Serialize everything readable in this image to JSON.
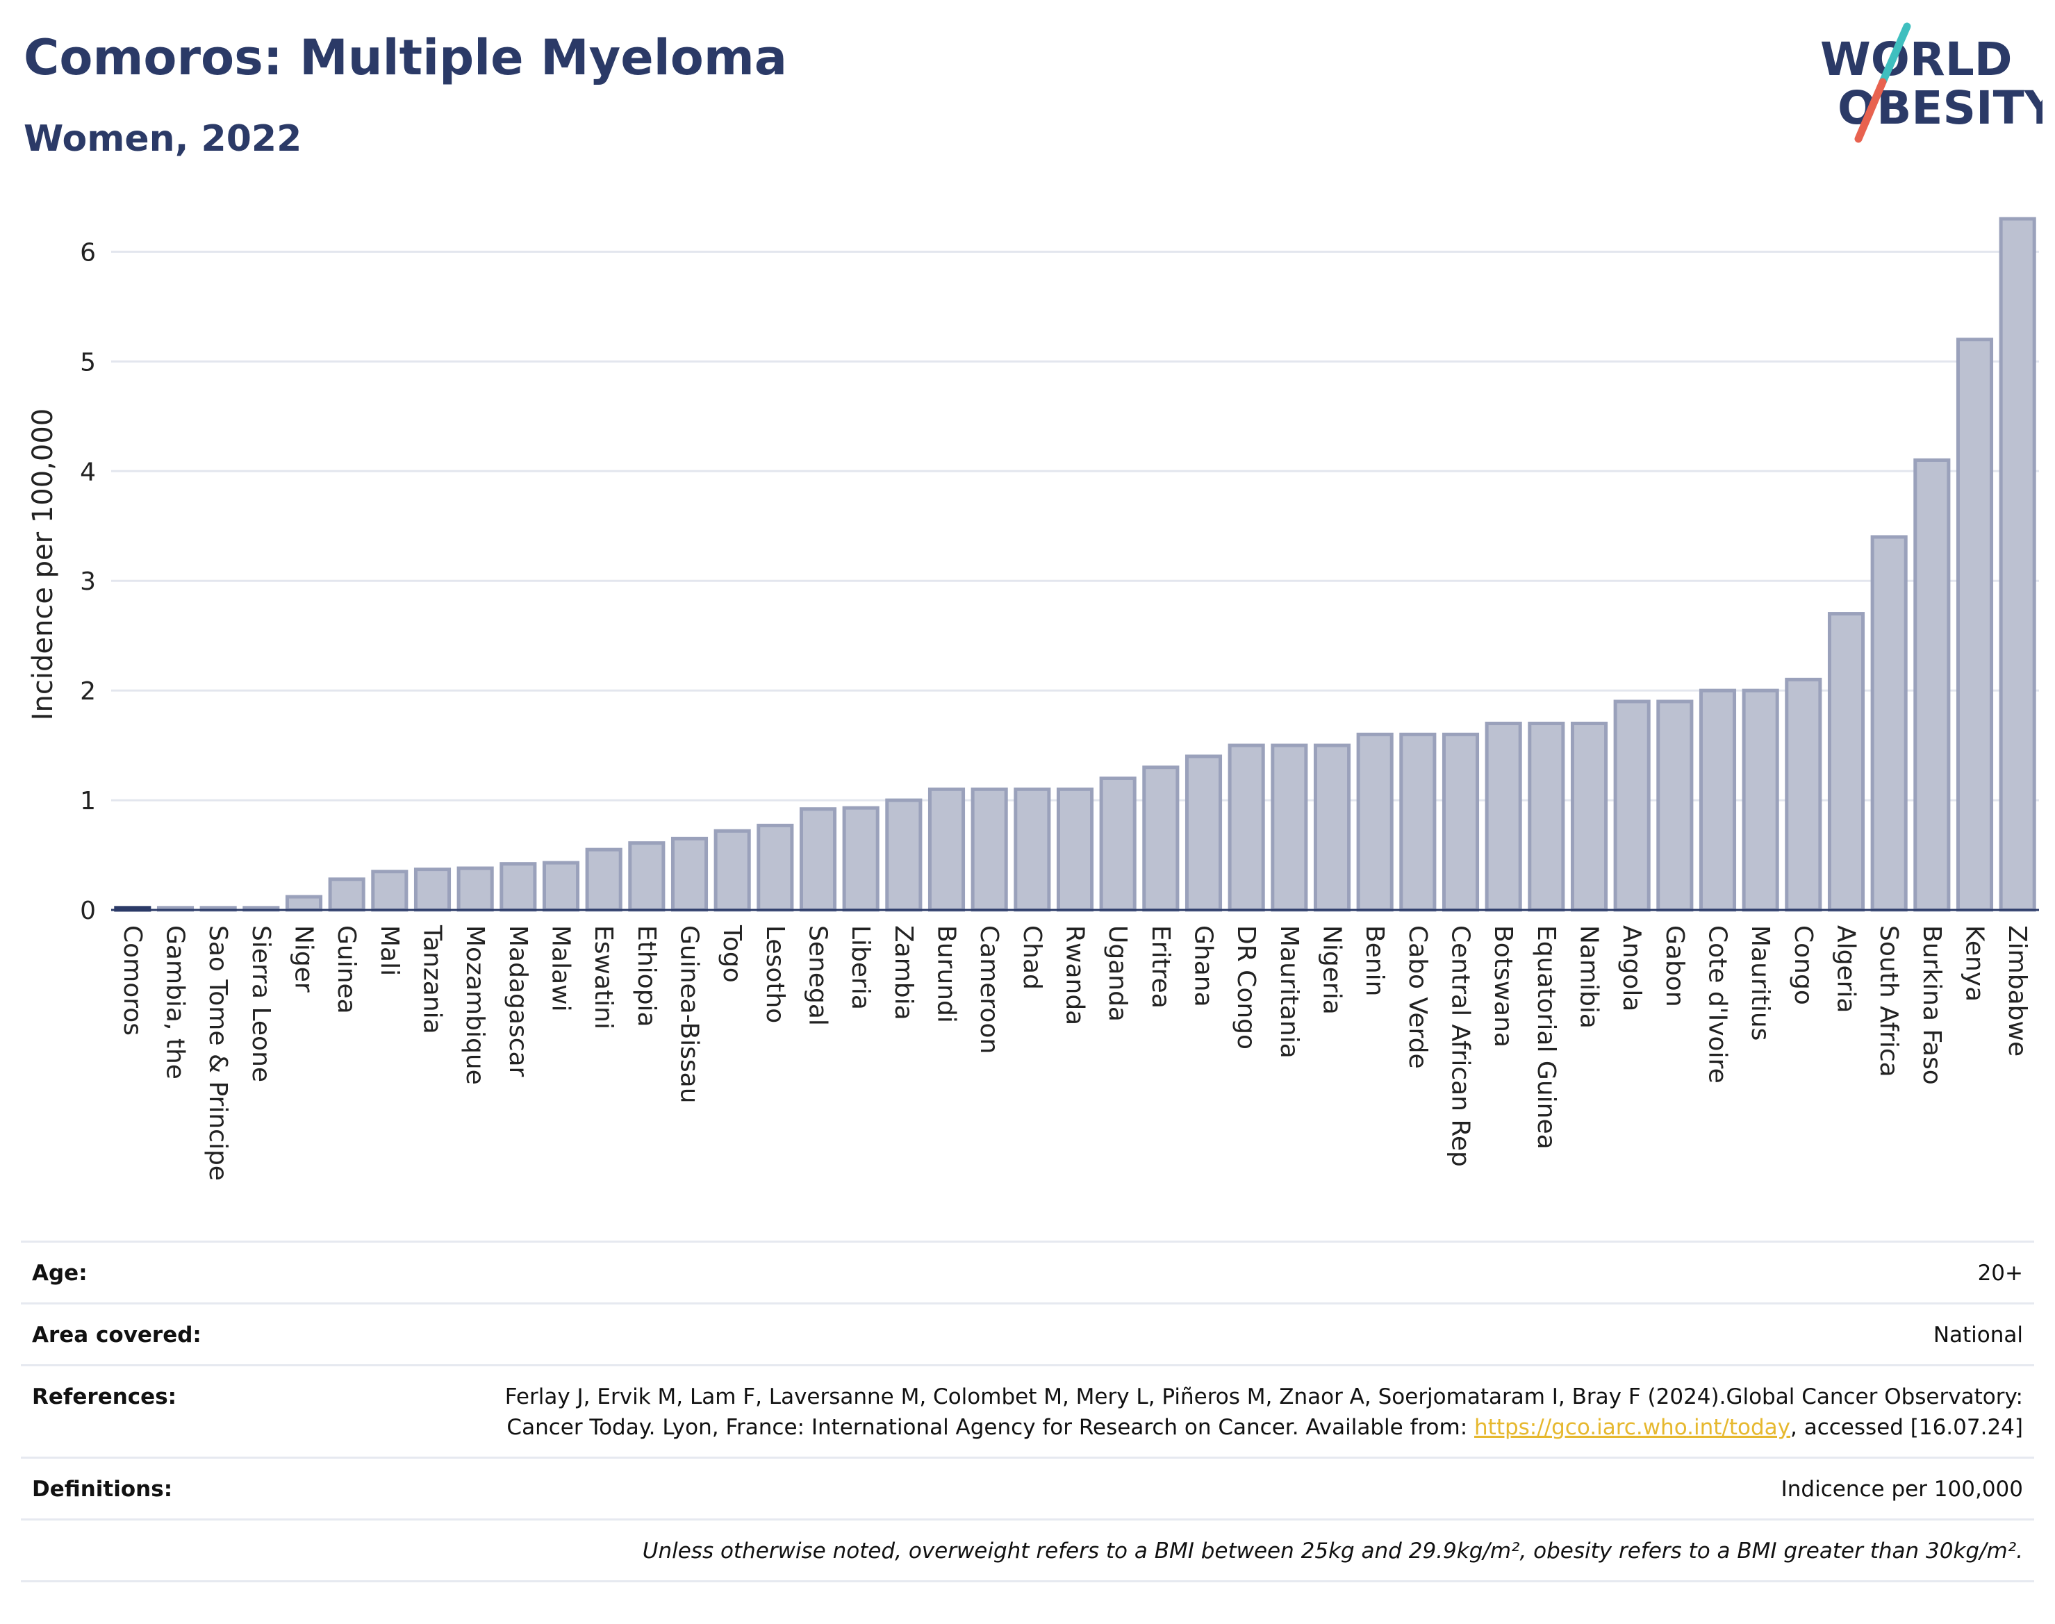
{
  "header": {
    "title": "Comoros: Multiple Myeloma",
    "subtitle": "Women, 2022"
  },
  "logo": {
    "line1": "WORLD",
    "line2": "OBESITY",
    "colors": {
      "text": "#2b3a67",
      "slash_teal": "#3fbfbf",
      "slash_red": "#e8624f"
    }
  },
  "chart_data": {
    "type": "bar",
    "title": "",
    "ylabel": "Incidence per 100,000",
    "xlabel": "",
    "ylim": [
      0,
      6.3
    ],
    "yticks": [
      0,
      1,
      2,
      3,
      4,
      5,
      6
    ],
    "grid": true,
    "highlight": "Comoros",
    "colors": {
      "bar": "#bcc1d1",
      "bar_edge": "#9aa1bb",
      "highlight": "#2b3a67",
      "grid": "#e3e6ee"
    },
    "categories": [
      "Comoros",
      "Gambia, the",
      "Sao Tome & Principe",
      "Sierra Leone",
      "Niger",
      "Guinea",
      "Mali",
      "Tanzania",
      "Mozambique",
      "Madagascar",
      "Malawi",
      "Eswatini",
      "Ethiopia",
      "Guinea-Bissau",
      "Togo",
      "Lesotho",
      "Senegal",
      "Liberia",
      "Zambia",
      "Burundi",
      "Cameroon",
      "Chad",
      "Rwanda",
      "Uganda",
      "Eritrea",
      "Ghana",
      "DR Congo",
      "Mauritania",
      "Nigeria",
      "Benin",
      "Cabo Verde",
      "Central African Rep",
      "Botswana",
      "Equatorial Guinea",
      "Namibia",
      "Angola",
      "Gabon",
      "Cote d'Ivoire",
      "Mauritius",
      "Congo",
      "Algeria",
      "South Africa",
      "Burkina Faso",
      "Kenya",
      "Zimbabwe"
    ],
    "values": [
      0.02,
      0.02,
      0.02,
      0.02,
      0.12,
      0.28,
      0.35,
      0.37,
      0.38,
      0.42,
      0.43,
      0.55,
      0.61,
      0.65,
      0.72,
      0.77,
      0.92,
      0.93,
      1.0,
      1.1,
      1.1,
      1.1,
      1.1,
      1.2,
      1.3,
      1.4,
      1.5,
      1.5,
      1.5,
      1.6,
      1.6,
      1.6,
      1.7,
      1.7,
      1.7,
      1.9,
      1.9,
      2.0,
      2.0,
      2.1,
      2.7,
      3.4,
      4.1,
      5.2,
      6.3
    ]
  },
  "info": {
    "age_label": "Age:",
    "age_value": "20+",
    "area_label": "Area covered:",
    "area_value": "National",
    "references_label": "References:",
    "references_text": "Ferlay J, Ervik M, Lam F, Laversanne M, Colombet M, Mery L, Piñeros M, Znaor A, Soerjomataram I, Bray F (2024).Global Cancer Observatory: Cancer Today. Lyon, France: International Agency for Research on Cancer. Available from: ",
    "references_link": "https://gco.iarc.who.int/today",
    "references_suffix": ", accessed [16.07.24]",
    "definitions_label": "Definitions:",
    "definitions_value": "Indicence per 100,000",
    "note": "Unless otherwise noted, overweight refers to a BMI between 25kg and 29.9kg/m², obesity refers to a BMI greater than 30kg/m²."
  }
}
